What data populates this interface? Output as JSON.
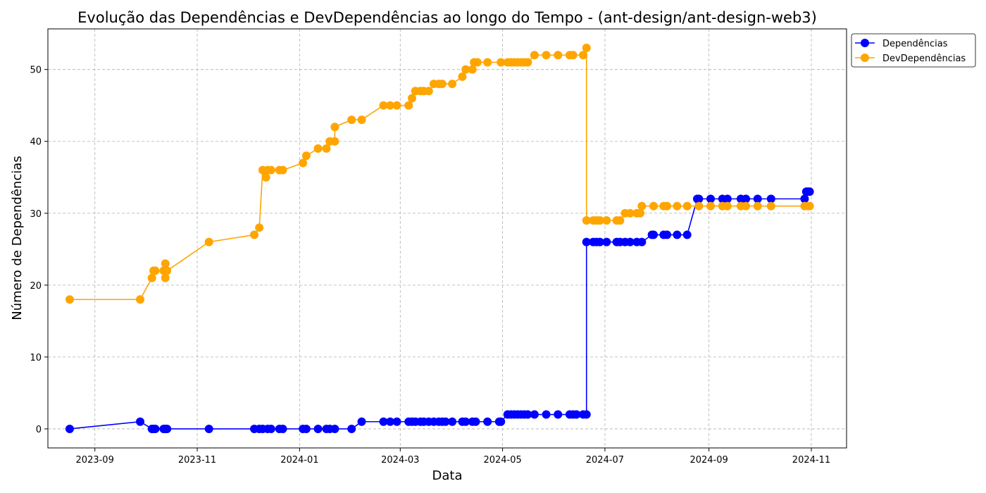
{
  "chart_data": {
    "type": "line",
    "title": "Evolução das Dependências e DevDependências ao longo do Tempo - (ant-design/ant-design-web3)",
    "xlabel": "Data",
    "ylabel": "Número de Dependências",
    "x_ticks": [
      "2023-09",
      "2023-11",
      "2024-01",
      "2024-03",
      "2024-05",
      "2024-07",
      "2024-09",
      "2024-11"
    ],
    "y_ticks": [
      0,
      10,
      20,
      30,
      40,
      50
    ],
    "xlim": [
      "2023-08-04",
      "2024-11-22"
    ],
    "ylim": [
      -2.65,
      55.65
    ],
    "grid": true,
    "legend_position": "upper-right-outside",
    "series": [
      {
        "name": "Dependências",
        "color": "#0000ff",
        "points": [
          [
            "2023-08-17",
            0
          ],
          [
            "2023-09-28",
            1
          ],
          [
            "2023-10-05",
            0
          ],
          [
            "2023-10-06",
            0
          ],
          [
            "2023-10-07",
            0
          ],
          [
            "2023-10-12",
            0
          ],
          [
            "2023-10-13",
            0
          ],
          [
            "2023-10-14",
            0
          ],
          [
            "2023-11-08",
            0
          ],
          [
            "2023-12-05",
            0
          ],
          [
            "2023-12-08",
            0
          ],
          [
            "2023-12-10",
            0
          ],
          [
            "2023-12-13",
            0
          ],
          [
            "2023-12-15",
            0
          ],
          [
            "2023-12-20",
            0
          ],
          [
            "2023-12-22",
            0
          ],
          [
            "2024-01-03",
            0
          ],
          [
            "2024-01-05",
            0
          ],
          [
            "2024-01-12",
            0
          ],
          [
            "2024-01-17",
            0
          ],
          [
            "2024-01-19",
            0
          ],
          [
            "2024-01-22",
            0
          ],
          [
            "2024-02-01",
            0
          ],
          [
            "2024-02-07",
            1
          ],
          [
            "2024-02-20",
            1
          ],
          [
            "2024-02-24",
            1
          ],
          [
            "2024-02-28",
            1
          ],
          [
            "2024-03-06",
            1
          ],
          [
            "2024-03-08",
            1
          ],
          [
            "2024-03-10",
            1
          ],
          [
            "2024-03-13",
            1
          ],
          [
            "2024-03-15",
            1
          ],
          [
            "2024-03-18",
            1
          ],
          [
            "2024-03-21",
            1
          ],
          [
            "2024-03-24",
            1
          ],
          [
            "2024-03-26",
            1
          ],
          [
            "2024-03-28",
            1
          ],
          [
            "2024-04-01",
            1
          ],
          [
            "2024-04-07",
            1
          ],
          [
            "2024-04-09",
            1
          ],
          [
            "2024-04-13",
            1
          ],
          [
            "2024-04-15",
            1
          ],
          [
            "2024-04-22",
            1
          ],
          [
            "2024-04-29",
            1
          ],
          [
            "2024-04-30",
            1
          ],
          [
            "2024-05-04",
            2
          ],
          [
            "2024-05-06",
            2
          ],
          [
            "2024-05-08",
            2
          ],
          [
            "2024-05-10",
            2
          ],
          [
            "2024-05-12",
            2
          ],
          [
            "2024-05-14",
            2
          ],
          [
            "2024-05-16",
            2
          ],
          [
            "2024-05-20",
            2
          ],
          [
            "2024-05-27",
            2
          ],
          [
            "2024-06-03",
            2
          ],
          [
            "2024-06-10",
            2
          ],
          [
            "2024-06-12",
            2
          ],
          [
            "2024-06-14",
            2
          ],
          [
            "2024-06-18",
            2
          ],
          [
            "2024-06-20",
            2
          ],
          [
            "2024-06-20",
            26
          ],
          [
            "2024-06-24",
            26
          ],
          [
            "2024-06-26",
            26
          ],
          [
            "2024-06-28",
            26
          ],
          [
            "2024-07-02",
            26
          ],
          [
            "2024-07-08",
            26
          ],
          [
            "2024-07-10",
            26
          ],
          [
            "2024-07-13",
            26
          ],
          [
            "2024-07-16",
            26
          ],
          [
            "2024-07-20",
            26
          ],
          [
            "2024-07-23",
            26
          ],
          [
            "2024-07-29",
            27
          ],
          [
            "2024-07-30",
            27
          ],
          [
            "2024-08-05",
            27
          ],
          [
            "2024-08-07",
            27
          ],
          [
            "2024-08-13",
            27
          ],
          [
            "2024-08-19",
            27
          ],
          [
            "2024-08-25",
            32
          ],
          [
            "2024-08-26",
            32
          ],
          [
            "2024-09-02",
            32
          ],
          [
            "2024-09-09",
            32
          ],
          [
            "2024-09-12",
            32
          ],
          [
            "2024-09-20",
            32
          ],
          [
            "2024-09-23",
            32
          ],
          [
            "2024-09-30",
            32
          ],
          [
            "2024-10-08",
            32
          ],
          [
            "2024-10-28",
            32
          ],
          [
            "2024-10-29",
            33
          ],
          [
            "2024-10-30",
            33
          ],
          [
            "2024-10-31",
            33
          ]
        ]
      },
      {
        "name": "DevDependências",
        "color": "#ffa500",
        "points": [
          [
            "2023-08-17",
            18
          ],
          [
            "2023-09-28",
            18
          ],
          [
            "2023-10-05",
            21
          ],
          [
            "2023-10-06",
            22
          ],
          [
            "2023-10-07",
            22
          ],
          [
            "2023-10-12",
            22
          ],
          [
            "2023-10-13",
            23
          ],
          [
            "2023-10-13",
            21
          ],
          [
            "2023-10-14",
            22
          ],
          [
            "2023-11-08",
            26
          ],
          [
            "2023-12-05",
            27
          ],
          [
            "2023-12-08",
            28
          ],
          [
            "2023-12-10",
            36
          ],
          [
            "2023-12-12",
            35
          ],
          [
            "2023-12-13",
            36
          ],
          [
            "2023-12-15",
            36
          ],
          [
            "2023-12-20",
            36
          ],
          [
            "2023-12-22",
            36
          ],
          [
            "2024-01-03",
            37
          ],
          [
            "2024-01-05",
            38
          ],
          [
            "2024-01-12",
            39
          ],
          [
            "2024-01-17",
            39
          ],
          [
            "2024-01-19",
            40
          ],
          [
            "2024-01-22",
            40
          ],
          [
            "2024-01-22",
            42
          ],
          [
            "2024-02-01",
            43
          ],
          [
            "2024-02-07",
            43
          ],
          [
            "2024-02-20",
            45
          ],
          [
            "2024-02-24",
            45
          ],
          [
            "2024-02-28",
            45
          ],
          [
            "2024-03-06",
            45
          ],
          [
            "2024-03-08",
            46
          ],
          [
            "2024-03-10",
            47
          ],
          [
            "2024-03-13",
            47
          ],
          [
            "2024-03-15",
            47
          ],
          [
            "2024-03-18",
            47
          ],
          [
            "2024-03-21",
            48
          ],
          [
            "2024-03-24",
            48
          ],
          [
            "2024-03-26",
            48
          ],
          [
            "2024-04-01",
            48
          ],
          [
            "2024-04-07",
            49
          ],
          [
            "2024-04-09",
            50
          ],
          [
            "2024-04-13",
            50
          ],
          [
            "2024-04-14",
            51
          ],
          [
            "2024-04-16",
            51
          ],
          [
            "2024-04-22",
            51
          ],
          [
            "2024-04-30",
            51
          ],
          [
            "2024-05-04",
            51
          ],
          [
            "2024-05-06",
            51
          ],
          [
            "2024-05-08",
            51
          ],
          [
            "2024-05-10",
            51
          ],
          [
            "2024-05-12",
            51
          ],
          [
            "2024-05-14",
            51
          ],
          [
            "2024-05-16",
            51
          ],
          [
            "2024-05-20",
            52
          ],
          [
            "2024-05-27",
            52
          ],
          [
            "2024-06-03",
            52
          ],
          [
            "2024-06-10",
            52
          ],
          [
            "2024-06-12",
            52
          ],
          [
            "2024-06-18",
            52
          ],
          [
            "2024-06-20",
            53
          ],
          [
            "2024-06-20",
            29
          ],
          [
            "2024-06-24",
            29
          ],
          [
            "2024-06-26",
            29
          ],
          [
            "2024-06-28",
            29
          ],
          [
            "2024-07-02",
            29
          ],
          [
            "2024-07-08",
            29
          ],
          [
            "2024-07-10",
            29
          ],
          [
            "2024-07-13",
            30
          ],
          [
            "2024-07-16",
            30
          ],
          [
            "2024-07-20",
            30
          ],
          [
            "2024-07-22",
            30
          ],
          [
            "2024-07-23",
            31
          ],
          [
            "2024-07-30",
            31
          ],
          [
            "2024-08-05",
            31
          ],
          [
            "2024-08-07",
            31
          ],
          [
            "2024-08-13",
            31
          ],
          [
            "2024-08-19",
            31
          ],
          [
            "2024-08-26",
            31
          ],
          [
            "2024-09-02",
            31
          ],
          [
            "2024-09-09",
            31
          ],
          [
            "2024-09-12",
            31
          ],
          [
            "2024-09-20",
            31
          ],
          [
            "2024-09-23",
            31
          ],
          [
            "2024-09-30",
            31
          ],
          [
            "2024-10-08",
            31
          ],
          [
            "2024-10-28",
            31
          ],
          [
            "2024-10-30",
            31
          ],
          [
            "2024-10-31",
            31
          ]
        ]
      }
    ]
  }
}
